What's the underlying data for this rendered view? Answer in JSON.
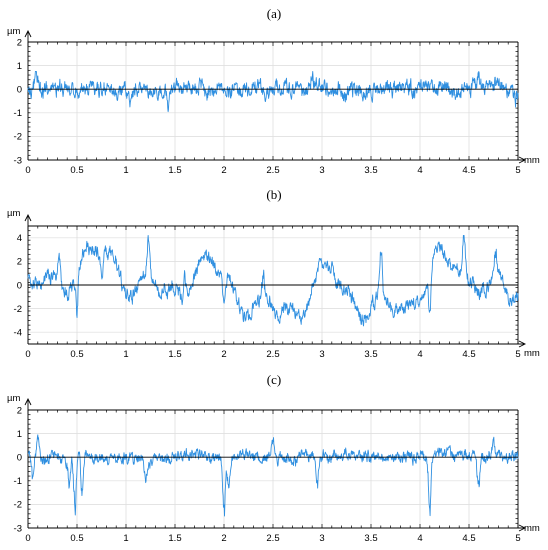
{
  "chart_data": [
    {
      "type": "line",
      "label": "(a)",
      "ylabel": "µm",
      "xlabel": "mm",
      "xlim": [
        0,
        5
      ],
      "ylim": [
        -3,
        2
      ],
      "xticks": [
        "0",
        "0.5",
        "1",
        "1.5",
        "2",
        "2.5",
        "3",
        "3.5",
        "4",
        "4.5",
        "5"
      ],
      "yticks": [
        "2",
        "1",
        "0",
        "-1",
        "-2",
        "-3"
      ],
      "grid": true,
      "series_color": "#2f8fe0",
      "profile": {
        "amplitude": 0.3,
        "max": 0.75,
        "min": -0.95,
        "events": [
          [
            1.43,
            -0.95
          ],
          [
            0.08,
            0.7
          ],
          [
            2.9,
            0.6
          ],
          [
            4.6,
            0.6
          ],
          [
            4.97,
            -0.55
          ],
          [
            1.05,
            -0.6
          ]
        ]
      }
    },
    {
      "type": "line",
      "label": "(b)",
      "ylabel": "µm",
      "xlabel": "mm",
      "xlim": [
        0,
        5
      ],
      "ylim": [
        -5,
        5
      ],
      "xticks": [
        "0",
        "0.5",
        "1",
        "1.5",
        "2",
        "2.5",
        "3",
        "3.5",
        "4",
        "4.5",
        "5"
      ],
      "yticks": [
        "4",
        "2",
        "0",
        "-2",
        "-4"
      ],
      "grid": true,
      "series_color": "#2f8fe0",
      "profile": {
        "amplitude": 0.55,
        "max": 4.2,
        "min": -4.0,
        "waves": [
          [
            0.05,
            0.1,
            1.2
          ],
          [
            0.21,
            0.42,
            1.6
          ],
          [
            0.43,
            1.9,
            1.1
          ],
          [
            0.83,
            0.21,
            0.6
          ]
        ],
        "events": [
          [
            0.5,
            -3.8
          ],
          [
            1.23,
            3.3
          ],
          [
            2.0,
            -3.4
          ],
          [
            3.6,
            3.4
          ],
          [
            4.1,
            -3.6
          ],
          [
            4.45,
            4.1
          ],
          [
            0.32,
            2.4
          ],
          [
            1.6,
            2.5
          ],
          [
            2.4,
            2.3
          ],
          [
            0.75,
            -2.4
          ],
          [
            4.77,
            2.5
          ]
        ]
      }
    },
    {
      "type": "line",
      "label": "(c)",
      "ylabel": "µm",
      "xlabel": "mm",
      "xlim": [
        0,
        5
      ],
      "ylim": [
        -3,
        2
      ],
      "xticks": [
        "0",
        "0.5",
        "1",
        "1.5",
        "2",
        "2.5",
        "3",
        "3.5",
        "4",
        "4.5",
        "5"
      ],
      "yticks": [
        "2",
        "1",
        "0",
        "-1",
        "-2",
        "-3"
      ],
      "grid": true,
      "series_color": "#2f8fe0",
      "profile": {
        "amplitude": 0.22,
        "max": 0.95,
        "min": -2.85,
        "events": [
          [
            0.48,
            -2.75
          ],
          [
            0.55,
            -1.8
          ],
          [
            0.42,
            -1.4
          ],
          [
            2.0,
            -2.4
          ],
          [
            2.05,
            -1.3
          ],
          [
            4.1,
            -2.5
          ],
          [
            4.6,
            -1.5
          ],
          [
            2.95,
            -1.3
          ],
          [
            1.2,
            -1.0
          ],
          [
            0.1,
            0.9
          ],
          [
            2.5,
            0.8
          ],
          [
            4.75,
            0.7
          ],
          [
            0.05,
            -1.0
          ]
        ]
      }
    }
  ]
}
